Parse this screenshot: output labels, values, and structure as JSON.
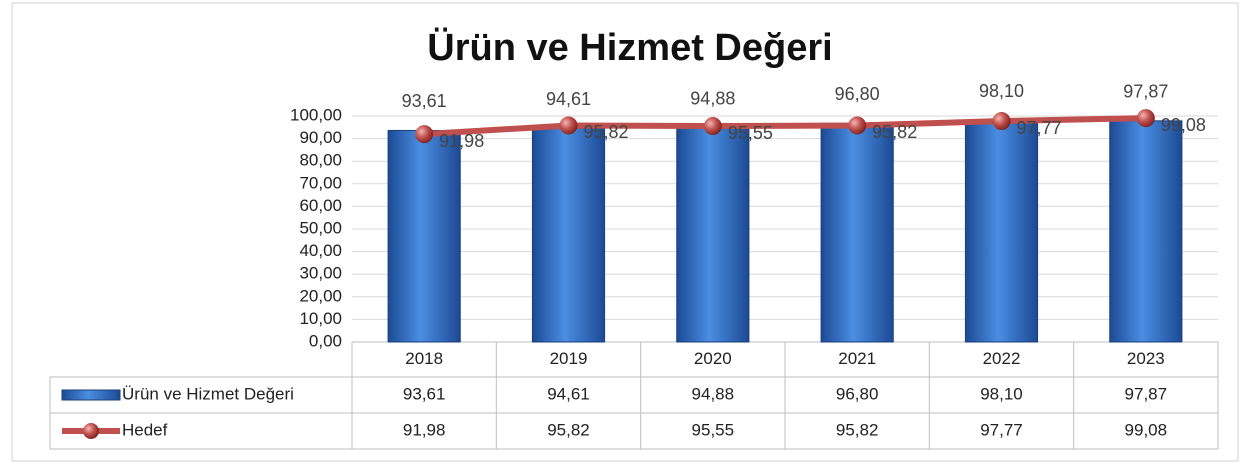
{
  "chart_data": {
    "type": "bar",
    "title": "Ürün ve Hizmet Değeri",
    "categories": [
      "2018",
      "2019",
      "2020",
      "2021",
      "2022",
      "2023"
    ],
    "series": [
      {
        "name": "Ürün ve Hizmet Değeri",
        "type": "bar",
        "color": "#3a75c4",
        "values": [
          93.61,
          94.61,
          94.88,
          96.8,
          98.1,
          97.87
        ],
        "value_labels": [
          "93,61",
          "94,61",
          "94,88",
          "96,80",
          "98,10",
          "97,87"
        ]
      },
      {
        "name": "Hedef",
        "type": "line",
        "color": "#c0504d",
        "values": [
          91.98,
          95.82,
          95.55,
          95.82,
          97.77,
          99.08
        ],
        "value_labels": [
          "91,98",
          "95,82",
          "95,55",
          "95,82",
          "97,77",
          "99,08"
        ]
      }
    ],
    "ylim": [
      0,
      100
    ],
    "yticks": [
      {
        "value": 0,
        "label": "0,00"
      },
      {
        "value": 10,
        "label": "10,00"
      },
      {
        "value": 20,
        "label": "20,00"
      },
      {
        "value": 30,
        "label": "30,00"
      },
      {
        "value": 40,
        "label": "40,00"
      },
      {
        "value": 50,
        "label": "50,00"
      },
      {
        "value": 60,
        "label": "60,00"
      },
      {
        "value": 70,
        "label": "70,00"
      },
      {
        "value": 80,
        "label": "80,00"
      },
      {
        "value": 90,
        "label": "90,00"
      },
      {
        "value": 100,
        "label": "100,00"
      }
    ],
    "grid": true,
    "legend": "table"
  }
}
